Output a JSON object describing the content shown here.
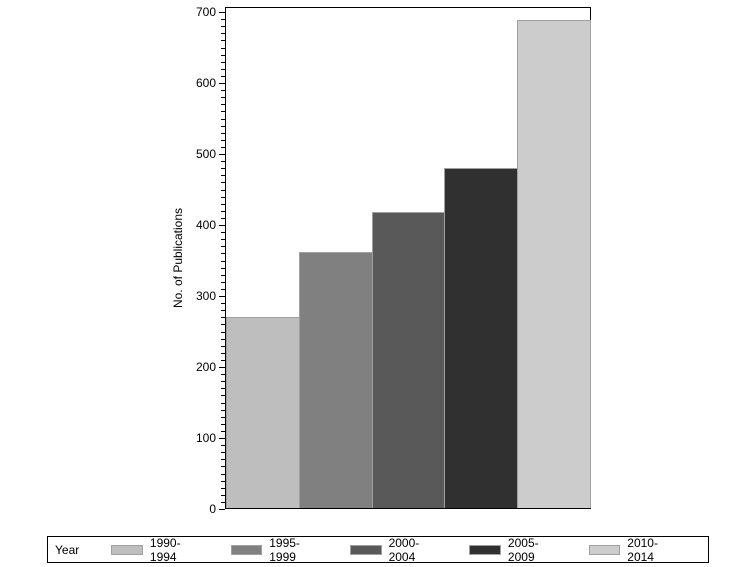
{
  "chart_data": {
    "type": "bar",
    "title": "",
    "xlabel": "",
    "ylabel": "No. of Publications",
    "ylim": [
      0,
      700
    ],
    "yticks": [
      0,
      100,
      200,
      300,
      400,
      500,
      600,
      700
    ],
    "grid": false,
    "legend_position": "bottom",
    "legend_title": "Year",
    "categories": [
      "1990-1994",
      "1995-1999",
      "2000-2004",
      "2005-2009",
      "2010-2014"
    ],
    "values": [
      269,
      361,
      417,
      479,
      687
    ],
    "colors": [
      "#bebebe",
      "#808080",
      "#595959",
      "#303030",
      "#cccccc"
    ]
  }
}
